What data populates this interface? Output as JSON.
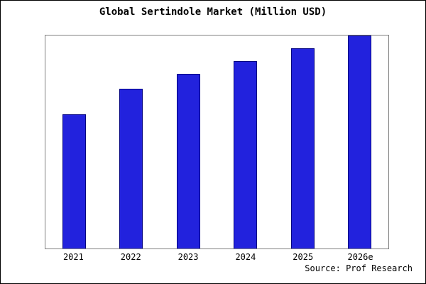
{
  "chart_data": {
    "type": "bar",
    "title": "Global Sertindole Market (Million USD)",
    "categories": [
      "2021",
      "2022",
      "2023",
      "2024",
      "2025",
      "2026e"
    ],
    "values": [
      63,
      75,
      82,
      88,
      94,
      100
    ],
    "xlabel": "",
    "ylabel": "",
    "ylim": [
      0,
      100
    ],
    "grid": false,
    "legend": "none",
    "bar_fill_color": "#2222dd",
    "bar_border_color": "#000080",
    "source": "Source: Prof Research"
  }
}
